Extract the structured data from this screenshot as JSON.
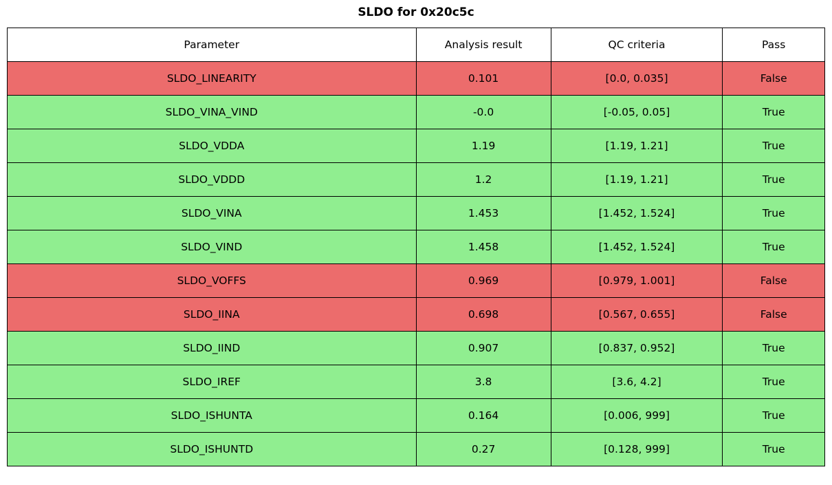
{
  "title": "SLDO for 0x20c5c",
  "columns": [
    "Parameter",
    "Analysis result",
    "QC criteria",
    "Pass"
  ],
  "rows": [
    {
      "parameter": "SLDO_LINEARITY",
      "result": "0.101",
      "criteria": "[0.0, 0.035]",
      "pass": "False"
    },
    {
      "parameter": "SLDO_VINA_VIND",
      "result": "-0.0",
      "criteria": "[-0.05, 0.05]",
      "pass": "True"
    },
    {
      "parameter": "SLDO_VDDA",
      "result": "1.19",
      "criteria": "[1.19, 1.21]",
      "pass": "True"
    },
    {
      "parameter": "SLDO_VDDD",
      "result": "1.2",
      "criteria": "[1.19, 1.21]",
      "pass": "True"
    },
    {
      "parameter": "SLDO_VINA",
      "result": "1.453",
      "criteria": "[1.452, 1.524]",
      "pass": "True"
    },
    {
      "parameter": "SLDO_VIND",
      "result": "1.458",
      "criteria": "[1.452, 1.524]",
      "pass": "True"
    },
    {
      "parameter": "SLDO_VOFFS",
      "result": "0.969",
      "criteria": "[0.979, 1.001]",
      "pass": "False"
    },
    {
      "parameter": "SLDO_IINA",
      "result": "0.698",
      "criteria": "[0.567, 0.655]",
      "pass": "False"
    },
    {
      "parameter": "SLDO_IIND",
      "result": "0.907",
      "criteria": "[0.837, 0.952]",
      "pass": "True"
    },
    {
      "parameter": "SLDO_IREF",
      "result": "3.8",
      "criteria": "[3.6, 4.2]",
      "pass": "True"
    },
    {
      "parameter": "SLDO_ISHUNTA",
      "result": "0.164",
      "criteria": "[0.006, 999]",
      "pass": "True"
    },
    {
      "parameter": "SLDO_ISHUNTD",
      "result": "0.27",
      "criteria": "[0.128, 999]",
      "pass": "True"
    }
  ],
  "colors": {
    "pass_row": "#90ee90",
    "fail_row": "#ec6c6c",
    "border": "#000000",
    "header_bg": "#ffffff"
  },
  "chart_data": {
    "type": "table",
    "title": "SLDO for 0x20c5c",
    "columns": [
      "Parameter",
      "Analysis result",
      "QC criteria",
      "Pass"
    ],
    "rows": [
      [
        "SLDO_LINEARITY",
        0.101,
        "[0.0, 0.035]",
        false
      ],
      [
        "SLDO_VINA_VIND",
        -0.0,
        "[-0.05, 0.05]",
        true
      ],
      [
        "SLDO_VDDA",
        1.19,
        "[1.19, 1.21]",
        true
      ],
      [
        "SLDO_VDDD",
        1.2,
        "[1.19, 1.21]",
        true
      ],
      [
        "SLDO_VINA",
        1.453,
        "[1.452, 1.524]",
        true
      ],
      [
        "SLDO_VIND",
        1.458,
        "[1.452, 1.524]",
        true
      ],
      [
        "SLDO_VOFFS",
        0.969,
        "[0.979, 1.001]",
        false
      ],
      [
        "SLDO_IINA",
        0.698,
        "[0.567, 0.655]",
        false
      ],
      [
        "SLDO_IIND",
        0.907,
        "[0.837, 0.952]",
        true
      ],
      [
        "SLDO_IREF",
        3.8,
        "[3.6, 4.2]",
        true
      ],
      [
        "SLDO_ISHUNTA",
        0.164,
        "[0.006, 999]",
        true
      ],
      [
        "SLDO_ISHUNTD",
        0.27,
        "[0.128, 999]",
        true
      ]
    ],
    "row_colors": {
      "pass": "#90ee90",
      "fail": "#ec6c6c"
    }
  }
}
